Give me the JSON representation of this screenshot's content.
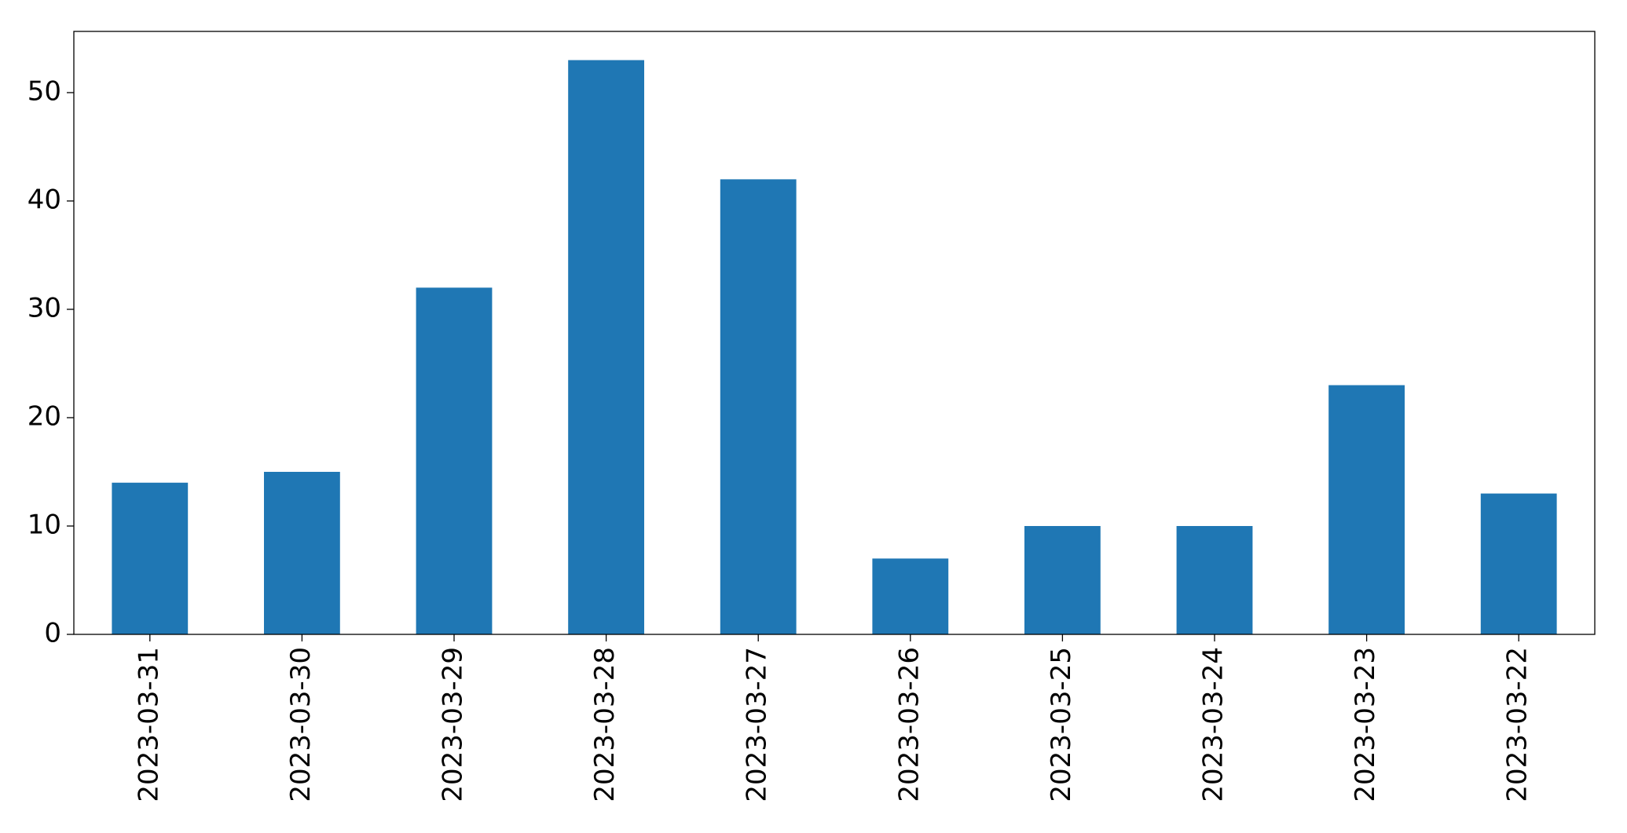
{
  "chart_data": {
    "type": "bar",
    "categories": [
      "2023-03-31",
      "2023-03-30",
      "2023-03-29",
      "2023-03-28",
      "2023-03-27",
      "2023-03-26",
      "2023-03-25",
      "2023-03-24",
      "2023-03-23",
      "2023-03-22"
    ],
    "values": [
      14,
      15,
      32,
      53,
      42,
      7,
      10,
      10,
      23,
      13
    ],
    "color": "#1f77b4",
    "ylim": [
      0,
      55.65
    ],
    "yticks": [
      0,
      10,
      20,
      30,
      40,
      50
    ],
    "grid": false
  }
}
